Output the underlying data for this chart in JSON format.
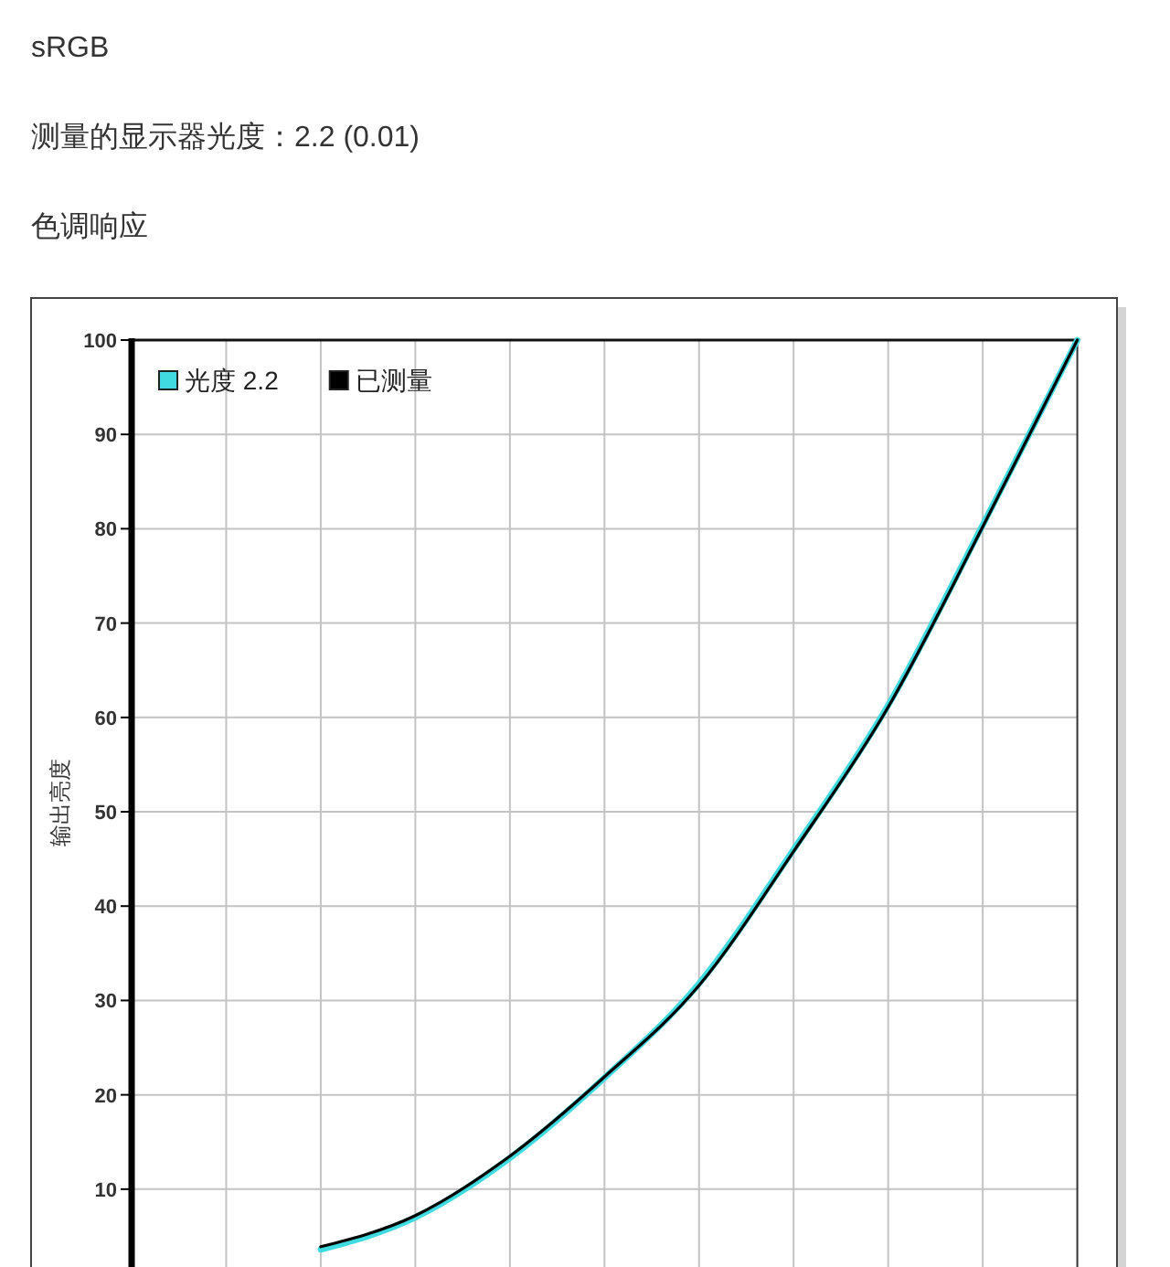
{
  "chart_data": {
    "type": "line",
    "title": "色调响应",
    "annotations": [
      "sRGB",
      "测量的显示器光度：2.2 (0.01)"
    ],
    "ylabel": "输出亮度",
    "categories": [
      null,
      null,
      null,
      null,
      null,
      null,
      null,
      null,
      null,
      null,
      null
    ],
    "series": [
      {
        "name": "光度 2.2",
        "color": "#3fdbe0",
        "values": [
          null,
          null,
          3.6,
          7,
          13.3,
          21.8,
          31.8,
          46,
          61.3,
          80.4,
          100
        ]
      },
      {
        "name": "已测量",
        "color": "#000000",
        "values": [
          null,
          null,
          3.9,
          7.2,
          13.5,
          21.9,
          31.6,
          45.8,
          61.1,
          80.2,
          100
        ]
      }
    ],
    "ylim": [
      2,
      100
    ],
    "yticks": [
      10,
      20,
      30,
      40,
      50,
      60,
      70,
      80,
      90,
      100
    ],
    "grid": true,
    "legend": "top left",
    "line_style": "solid",
    "tick_labels": "y"
  }
}
